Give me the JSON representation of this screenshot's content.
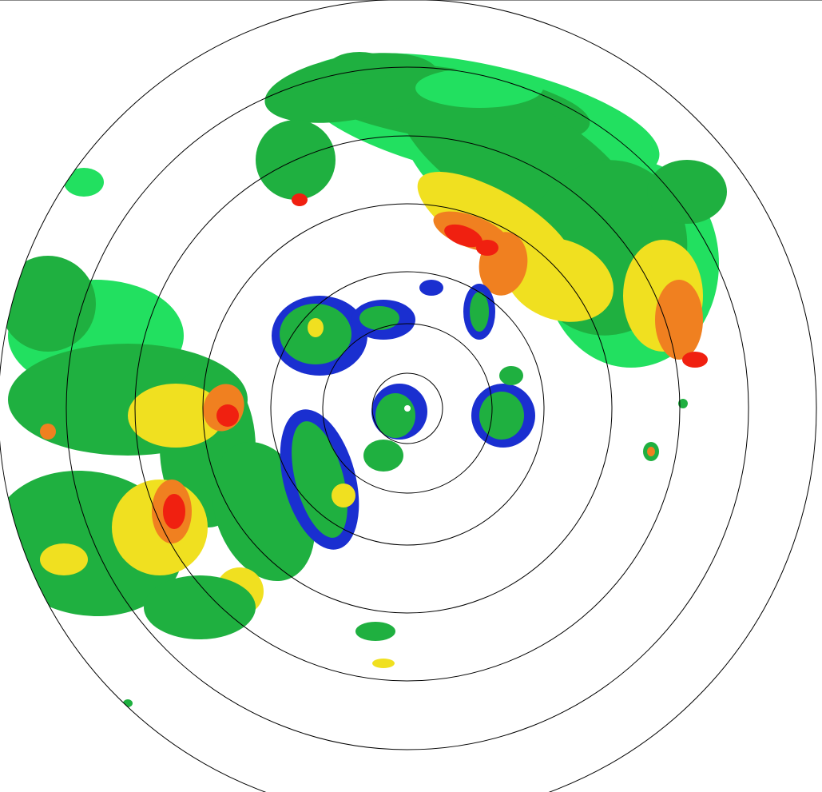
{
  "radar": {
    "view": "plan-position-indicator",
    "range_ring_count": 7,
    "colors": {
      "background": "#ffffff",
      "ring": "#000000",
      "weak_blue": "#1a2fd0",
      "light_cyan": "#22d0a0",
      "light_green": "#22e060",
      "green": "#1fb040",
      "yellow": "#f0e020",
      "orange": "#f08020",
      "red": "#f02010"
    }
  }
}
